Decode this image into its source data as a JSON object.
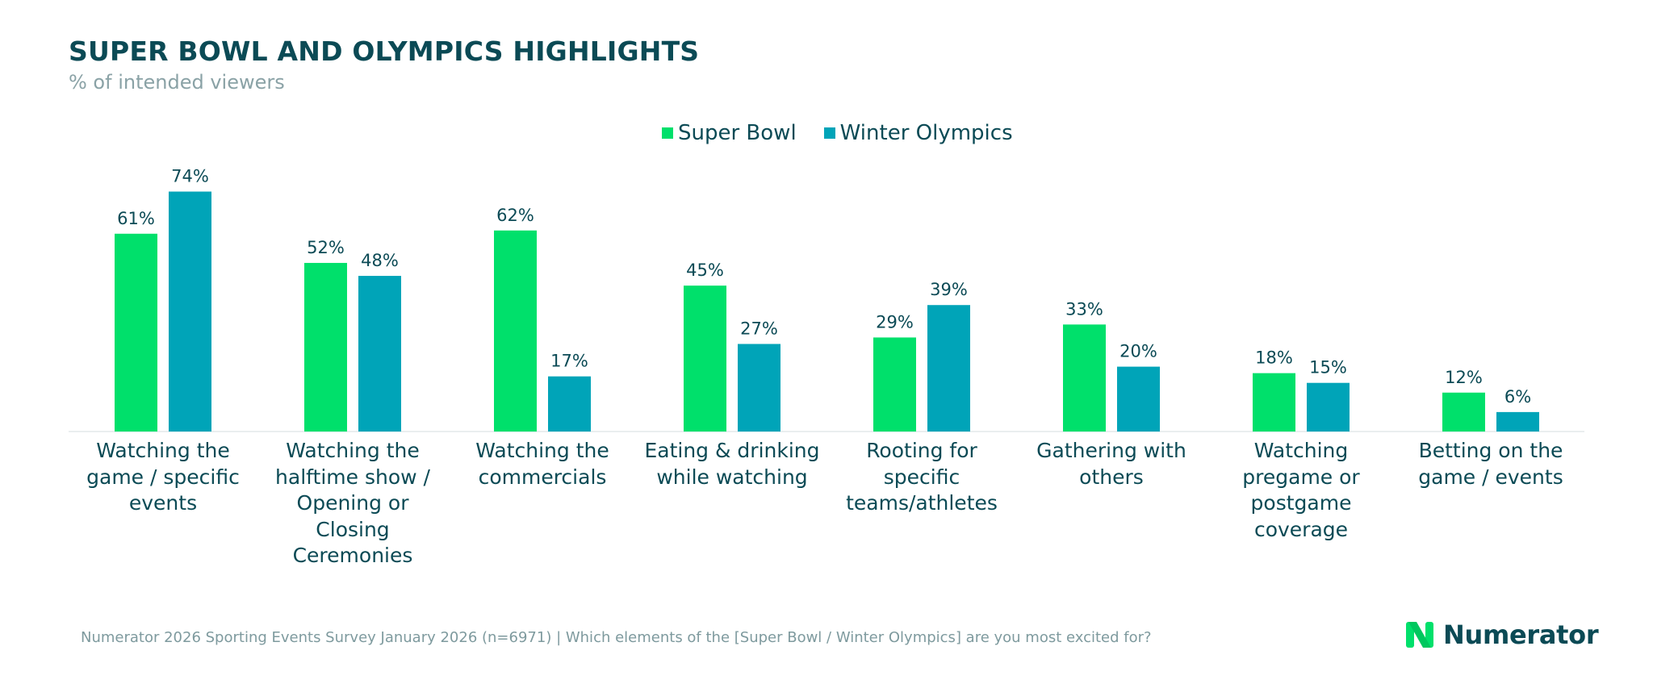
{
  "header": {
    "title": "SUPER BOWL AND OLYMPICS HIGHLIGHTS",
    "subtitle": "% of intended viewers"
  },
  "colors": {
    "super_bowl": "#00e06b",
    "winter_olympics": "#00a4b8",
    "axis": "#e3e8ea",
    "text": "#0b4a55"
  },
  "chart_data": {
    "type": "bar",
    "categories": [
      "Watching the game / specific events",
      "Watching the halftime show / Opening or Closing Ceremonies",
      "Watching the commercials",
      "Eating & drinking while watching",
      "Rooting for specific teams/athletes",
      "Gathering with others",
      "Watching pregame or postgame coverage",
      "Betting on the game / events"
    ],
    "series": [
      {
        "name": "Super Bowl",
        "values": [
          61,
          52,
          62,
          45,
          29,
          33,
          18,
          12
        ],
        "labels": [
          "61%",
          "52%",
          "62%",
          "45%",
          "29%",
          "33%",
          "18%",
          "12%"
        ]
      },
      {
        "name": "Winter Olympics",
        "values": [
          74,
          48,
          17,
          27,
          39,
          20,
          15,
          6
        ],
        "labels": [
          "74%",
          "48%",
          "17%",
          "27%",
          "39%",
          "20%",
          "15%",
          "6%"
        ]
      }
    ],
    "unit": "%",
    "ylim": [
      0,
      80
    ],
    "grid": false,
    "legend_position": "top-center"
  },
  "footer": {
    "source": "Numerator 2026 Sporting Events Survey January 2026 (n=6971) | Which elements of the [Super Bowl / Winter Olympics] are you most excited for?",
    "logo_text": "Numerator",
    "logo_icon": "numerator-n-logo"
  }
}
